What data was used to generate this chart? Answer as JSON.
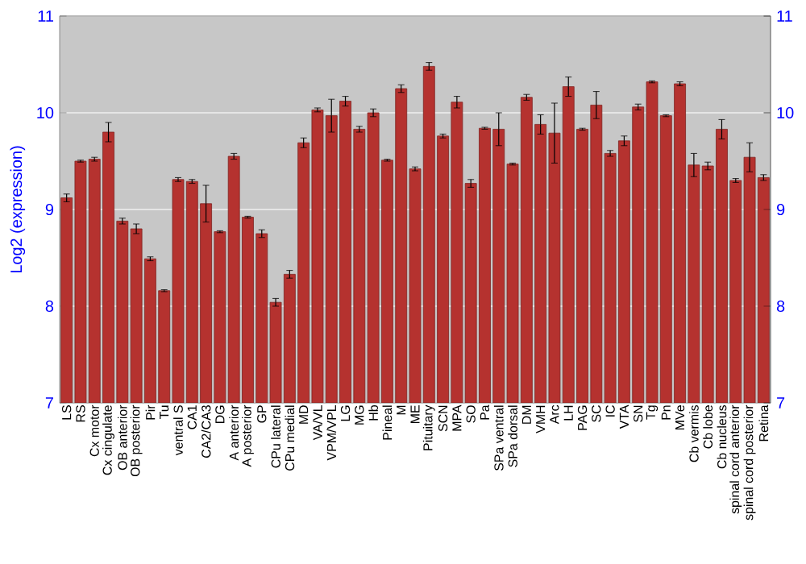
{
  "chart_data": {
    "type": "bar",
    "ylabel": "Log2 (expression)",
    "color": "#b5322f",
    "categories": [
      "LS",
      "RS",
      "Cx motor",
      "Cx cingulate",
      "OB anterior",
      "OB posterior",
      "Pir",
      "Tu",
      "ventral S",
      "CA1",
      "CA2/CA3",
      "DG",
      "A anterior",
      "A posterior",
      "GP",
      "CPu lateral",
      "CPu medial",
      "MD",
      "VA/VL",
      "VPM/VPL",
      "LG",
      "MG",
      "Hb",
      "Pineal",
      "M",
      "ME",
      "Pituitary",
      "SCN",
      "MPA",
      "SO",
      "Pa",
      "SPa ventral",
      "SPa dorsal",
      "DM",
      "VMH",
      "Arc",
      "LH",
      "PAG",
      "SC",
      "IC",
      "VTA",
      "SN",
      "Tg",
      "Pn",
      "MVe",
      "Cb vermis",
      "Cb lobe",
      "Cb nucleus",
      "spinal cord anterior",
      "spinal cord posterior",
      "Retina"
    ],
    "values": [
      9.12,
      9.5,
      9.52,
      9.8,
      8.88,
      8.8,
      8.49,
      8.16,
      9.31,
      9.29,
      9.06,
      8.77,
      9.55,
      8.92,
      8.75,
      8.04,
      8.33,
      9.69,
      10.03,
      9.97,
      10.12,
      9.83,
      10.0,
      9.51,
      10.25,
      9.42,
      10.48,
      9.76,
      10.11,
      9.27,
      9.84,
      9.83,
      9.47,
      10.16,
      9.88,
      9.79,
      10.27,
      9.83,
      10.08,
      9.58,
      9.71,
      10.06,
      10.32,
      9.97,
      10.3,
      9.46,
      9.45,
      9.83,
      9.3,
      9.54,
      9.33
    ],
    "errors": [
      0.04,
      0.01,
      0.02,
      0.1,
      0.03,
      0.05,
      0.02,
      0.01,
      0.02,
      0.02,
      0.19,
      0.01,
      0.03,
      0.01,
      0.04,
      0.04,
      0.04,
      0.05,
      0.02,
      0.17,
      0.05,
      0.03,
      0.04,
      0.01,
      0.04,
      0.02,
      0.04,
      0.02,
      0.06,
      0.04,
      0.01,
      0.17,
      0.01,
      0.03,
      0.1,
      0.31,
      0.1,
      0.01,
      0.14,
      0.03,
      0.05,
      0.03,
      0.01,
      0.01,
      0.02,
      0.12,
      0.04,
      0.1,
      0.02,
      0.15,
      0.03
    ],
    "ylim": [
      7,
      11
    ],
    "yticks": [
      7,
      8,
      9,
      10,
      11
    ],
    "y2lim": [
      7,
      11
    ],
    "y2ticks": [
      7,
      8,
      9,
      10,
      11
    ],
    "grid": "y"
  }
}
